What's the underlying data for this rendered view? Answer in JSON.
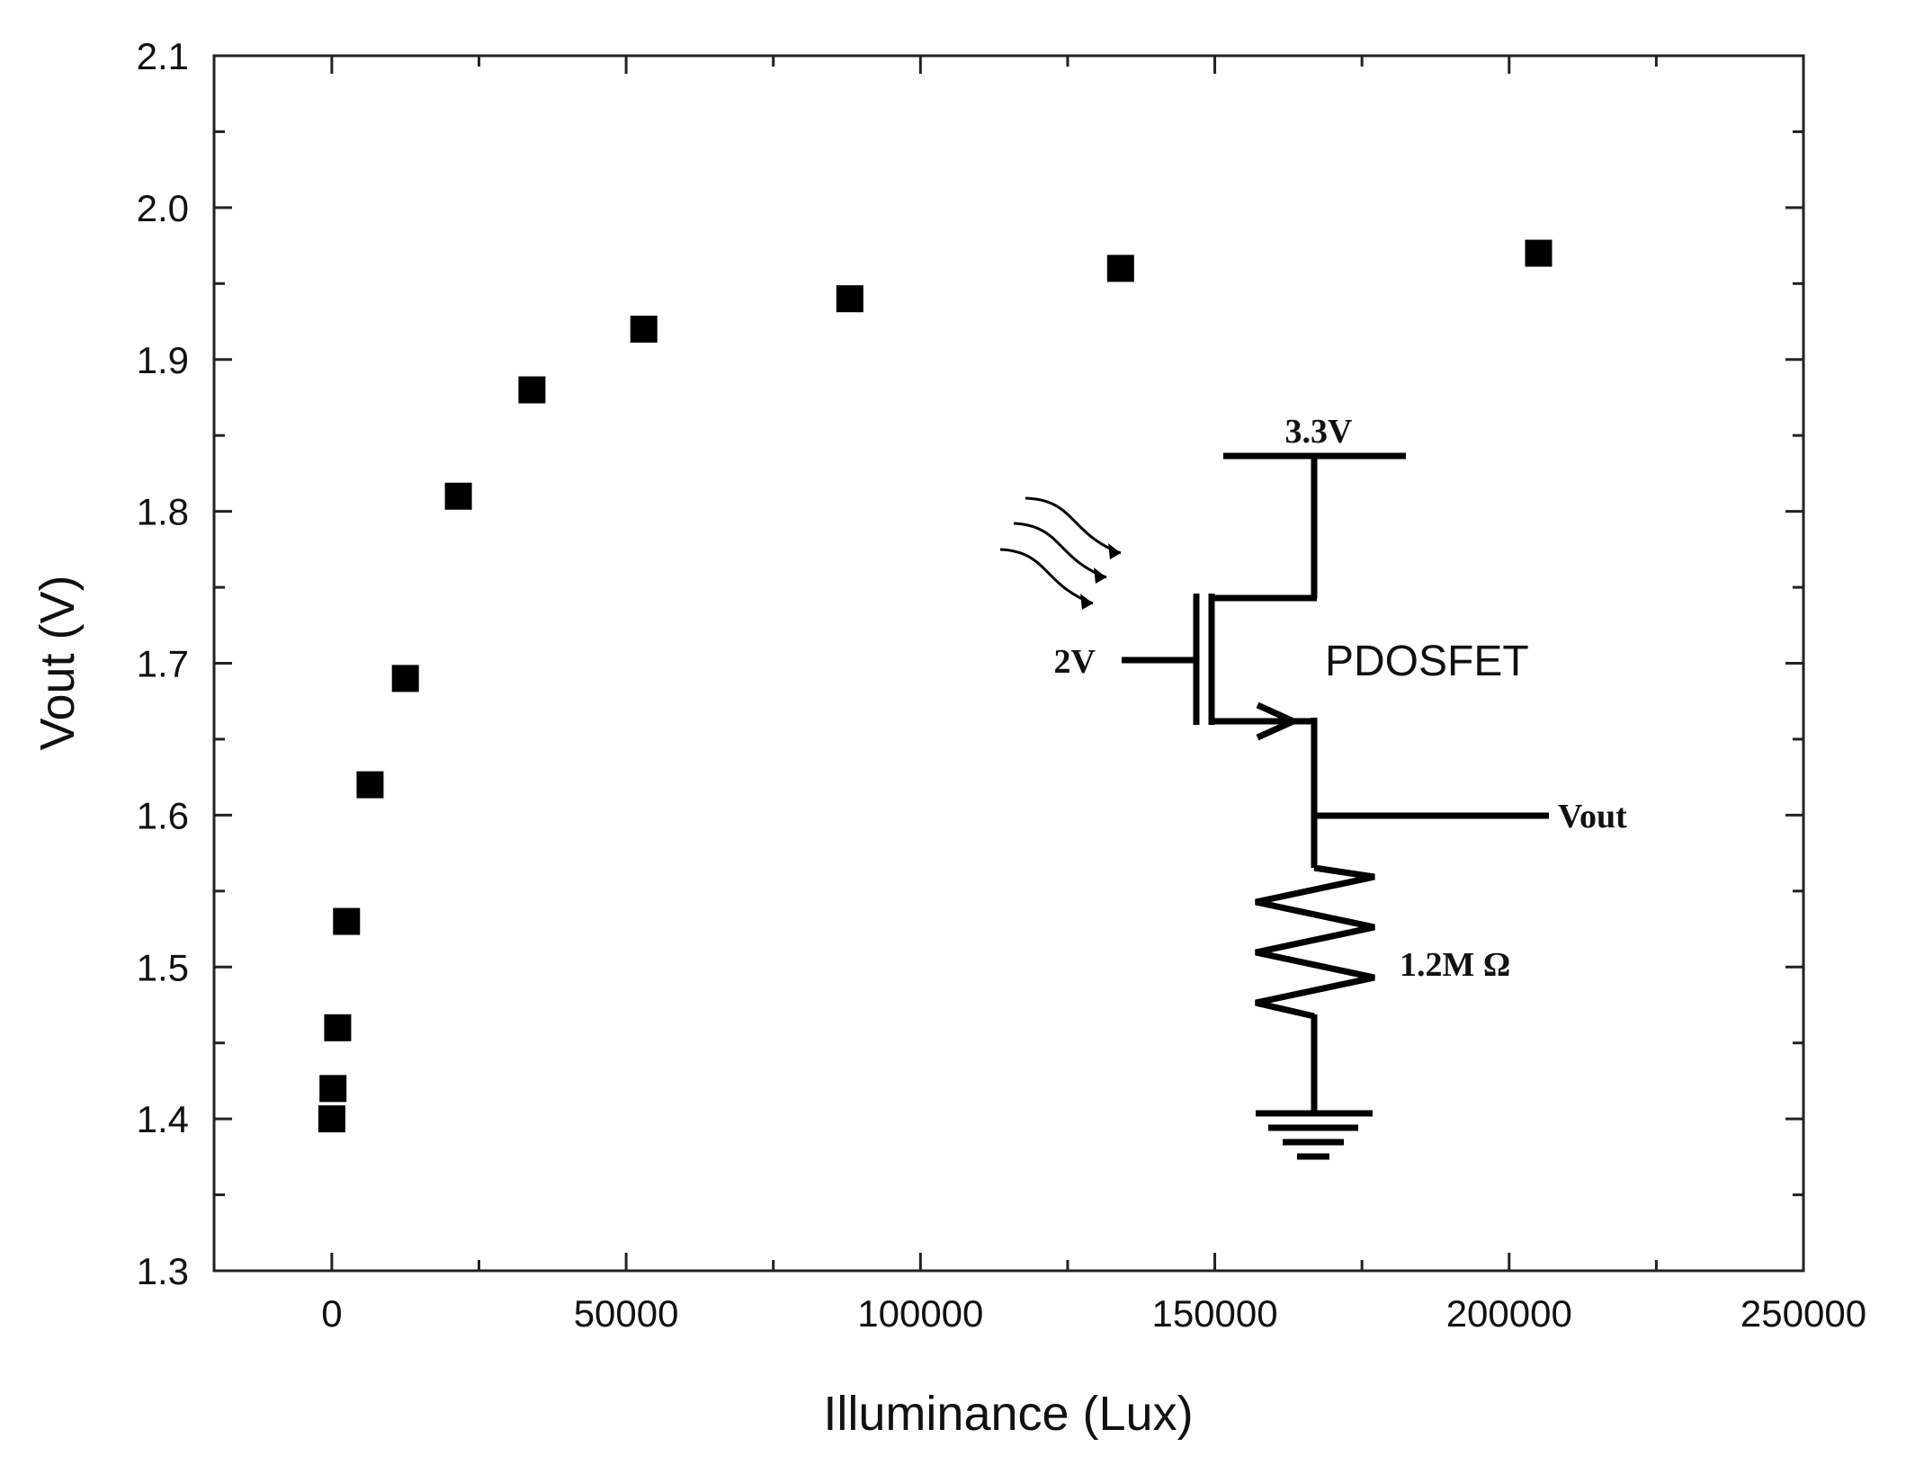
{
  "chart_data": {
    "type": "scatter",
    "xlabel": "Illuminance (Lux)",
    "ylabel": "Vout (V)",
    "xlim": [
      -20000,
      250000
    ],
    "ylim": [
      1.3,
      2.1
    ],
    "xticks": [
      "0",
      "50000",
      "100000",
      "150000",
      "200000",
      "250000"
    ],
    "xtick_values": [
      0,
      50000,
      100000,
      150000,
      200000,
      250000
    ],
    "yticks": [
      "1.3",
      "1.4",
      "1.5",
      "1.6",
      "1.7",
      "1.8",
      "1.9",
      "2.0",
      "2.1"
    ],
    "ytick_values": [
      1.3,
      1.4,
      1.5,
      1.6,
      1.7,
      1.8,
      1.9,
      2.0,
      2.1
    ],
    "marker": "square",
    "marker_color": "#000000",
    "series": [
      {
        "points": [
          {
            "x": 0,
            "y": 1.4
          },
          {
            "x": 200,
            "y": 1.42
          },
          {
            "x": 1000,
            "y": 1.46
          },
          {
            "x": 2500,
            "y": 1.53
          },
          {
            "x": 6500,
            "y": 1.62
          },
          {
            "x": 12500,
            "y": 1.69
          },
          {
            "x": 21500,
            "y": 1.81
          },
          {
            "x": 34000,
            "y": 1.88
          },
          {
            "x": 53000,
            "y": 1.92
          },
          {
            "x": 88000,
            "y": 1.94
          },
          {
            "x": 134000,
            "y": 1.96
          },
          {
            "x": 205000,
            "y": 1.97
          }
        ]
      }
    ],
    "grid": false,
    "legend": "none"
  },
  "inset": {
    "title": "PDOSFET",
    "supply_label": "3.3V",
    "gate_label": "2V",
    "output_label": "Vout",
    "resistor_label": "1.2M Ω"
  }
}
